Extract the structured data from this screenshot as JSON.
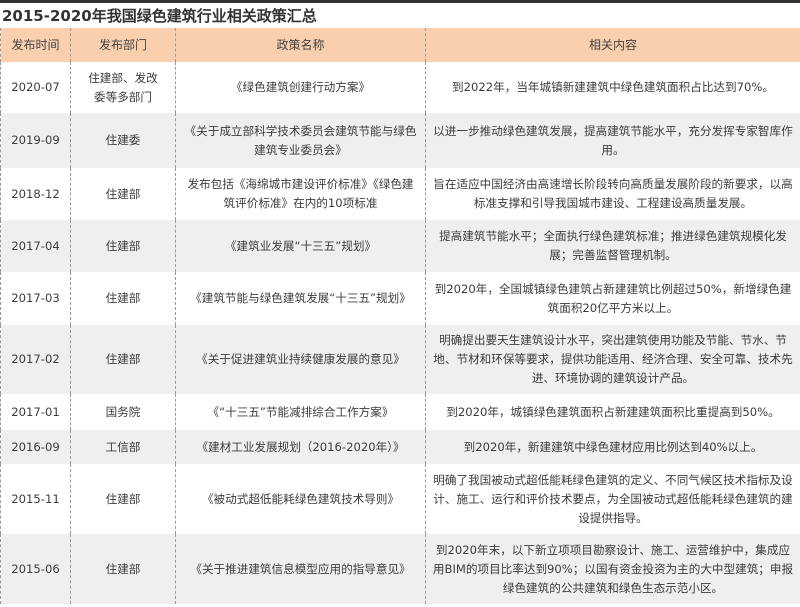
{
  "title": "2015-2020年我国绿色建筑行业相关政策汇总",
  "colors": {
    "header_bg": "#f9cfae",
    "stripe_bg": "#efefef"
  },
  "columns": [
    "发布时间",
    "发布部门",
    "政策名称",
    "相关内容"
  ],
  "rows": [
    {
      "date": "2020-07",
      "dept": "住建部、发改委等多部门",
      "policy": "《绿色建筑创建行动方案》",
      "content": "到2022年，当年城镇新建建筑中绿色建筑面积占比达到70%。"
    },
    {
      "date": "2019-09",
      "dept": "住建委",
      "policy": "《关于成立部科学技术委员会建筑节能与绿色建筑专业委员会》",
      "content": "以进一步推动绿色建筑发展，提高建筑节能水平，充分发挥专家智库作用。"
    },
    {
      "date": "2018-12",
      "dept": "住建部",
      "policy": "发布包括《海绵城市建设评价标准》《绿色建筑评价标准》在内的10项标准",
      "content": "旨在适应中国经济由高速增长阶段转向高质量发展阶段的新要求，以高标准支撑和引导我国城市建设、工程建设高质量发展。"
    },
    {
      "date": "2017-04",
      "dept": "住建部",
      "policy": "《建筑业发展“十三五”规划》",
      "content": "提高建筑节能水平；全面执行绿色建筑标准；推进绿色建筑规模化发展；完善监督管理机制。"
    },
    {
      "date": "2017-03",
      "dept": "住建部",
      "policy": "《建筑节能与绿色建筑发展“十三五”规划》",
      "content": "到2020年，全国城镇绿色建筑占新建建筑比例超过50%，新增绿色建筑面积20亿平方米以上。"
    },
    {
      "date": "2017-02",
      "dept": "住建部",
      "policy": "《关于促进建筑业持续健康发展的意见》",
      "content": "明确提出要天生建筑设计水平，突出建筑使用功能及节能、节水、节地、节材和环保等要求，提供功能适用、经济合理、安全可靠、技术先进、环境协调的建筑设计产品。"
    },
    {
      "date": "2017-01",
      "dept": "国务院",
      "policy": "《“十三五”节能减排综合工作方案》",
      "content": "到2020年，城镇绿色建筑面积占新建建筑面积比重提高到50%。"
    },
    {
      "date": "2016-09",
      "dept": "工信部",
      "policy": "《建材工业发展规划（2016-2020年）》",
      "content": "到2020年，新建建筑中绿色建材应用比例达到40%以上。"
    },
    {
      "date": "2015-11",
      "dept": "住建部",
      "policy": "《被动式超低能耗绿色建筑技术导则》",
      "content": "明确了我国被动式超低能耗绿色建筑的定义、不同气候区技术指标及设计、施工、运行和评价技术要点，为全国被动式超低能耗绿色建筑的建设提供指导。"
    },
    {
      "date": "2015-06",
      "dept": "住建部",
      "policy": "《关于推进建筑信息模型应用的指导意见》",
      "content": "到2020年末，以下新立项项目勘察设计、施工、运营维护中，集成应用BIM的项目比率达到90%；以国有资金投资为主的大中型建筑；申报绿色建筑的公共建筑和绿色生态示范小区。"
    }
  ]
}
